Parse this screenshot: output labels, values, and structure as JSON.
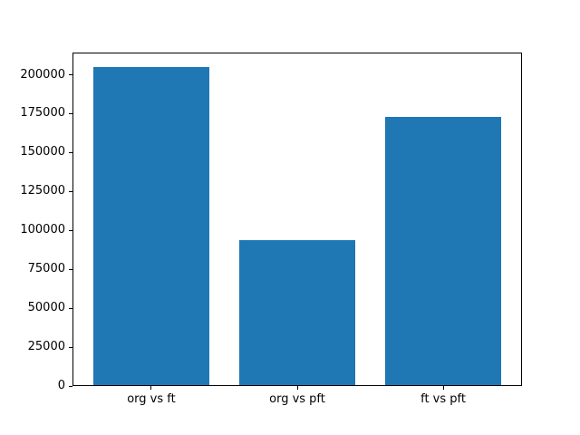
{
  "chart_data": {
    "type": "bar",
    "categories": [
      "org vs ft",
      "org vs pft",
      "ft vs pft"
    ],
    "values": [
      205000,
      94000,
      173000
    ],
    "title": "",
    "xlabel": "",
    "ylabel": "",
    "ylim": [
      0,
      214500
    ],
    "xlim": [
      -0.54,
      2.54
    ],
    "yticks": [
      0,
      25000,
      50000,
      75000,
      100000,
      125000,
      150000,
      175000,
      200000
    ],
    "bar_width": 0.8,
    "grid": false,
    "legend_position": "none",
    "colors": {
      "bar": "#1f77b4",
      "axis": "#000000",
      "tick_label": "#000000",
      "background": "#ffffff"
    }
  }
}
